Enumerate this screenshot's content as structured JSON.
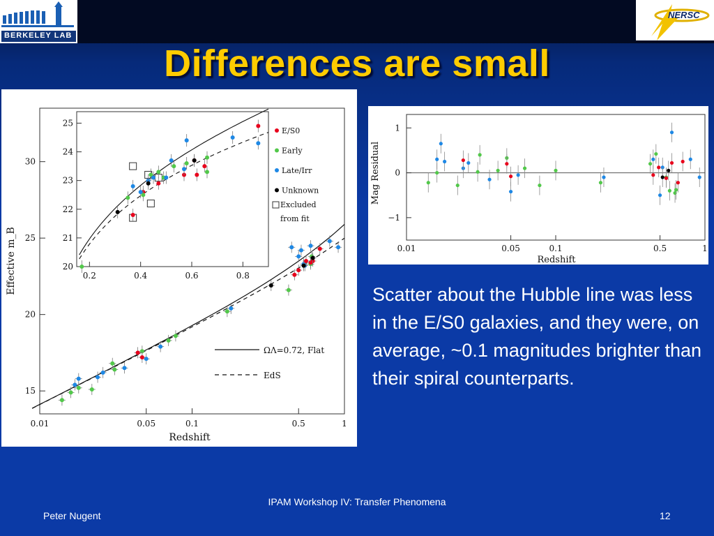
{
  "slide": {
    "title": "Differences are small",
    "body": "Scatter about the Hubble line was less in the E/S0 galaxies, and they were, on average, ~0.1 magnitudes brighter than their spiral counterparts.",
    "footer_left": "Peter Nugent",
    "footer_center": "IPAM Workshop IV: Transfer Phenomena",
    "slide_number": "12"
  },
  "logos": {
    "left": {
      "text": "BERKELEY LAB",
      "icon": "berkeley-lab-logo"
    },
    "right": {
      "text": "NERSC",
      "icon": "nersc-logo"
    }
  },
  "colors": {
    "title": "#ffcc00",
    "background": "#0b3aa6",
    "es0": "#e8001c",
    "early": "#52c84a",
    "late": "#1e88e5",
    "unknown": "#000000"
  },
  "chart_data": [
    {
      "type": "scatter",
      "xlabel": "Redshift",
      "ylabel": "Effective m_B",
      "x_scale": "log",
      "xlim": [
        0.01,
        1.0
      ],
      "ylim": [
        13.5,
        33.5
      ],
      "x_ticks": [
        "0.01",
        "0.05",
        "0.1",
        "0.5",
        "1"
      ],
      "y_ticks": [
        "15",
        "20",
        "25",
        "30"
      ],
      "lines": [
        {
          "name": "ΩΛ=0.72, Flat",
          "style": "solid"
        },
        {
          "name": "EdS",
          "style": "dashed"
        }
      ],
      "series": [
        {
          "name": "Early",
          "color": "#52c84a",
          "points": [
            [
              0.014,
              14.4
            ],
            [
              0.016,
              14.9
            ],
            [
              0.018,
              15.2
            ],
            [
              0.022,
              15.1
            ],
            [
              0.03,
              16.8
            ],
            [
              0.031,
              16.4
            ],
            [
              0.047,
              17.6
            ],
            [
              0.07,
              18.3
            ],
            [
              0.078,
              18.6
            ],
            [
              0.17,
              20.2
            ],
            [
              0.43,
              21.6
            ],
            [
              0.6,
              23.3
            ],
            [
              0.61,
              23.8
            ]
          ]
        },
        {
          "name": "Late/Irr",
          "color": "#1e88e5",
          "points": [
            [
              0.017,
              15.4
            ],
            [
              0.018,
              15.8
            ],
            [
              0.024,
              15.9
            ],
            [
              0.026,
              16.2
            ],
            [
              0.036,
              16.5
            ],
            [
              0.05,
              17.1
            ],
            [
              0.062,
              17.9
            ],
            [
              0.18,
              20.4
            ],
            [
              0.45,
              24.4
            ],
            [
              0.5,
              23.8
            ],
            [
              0.52,
              24.2
            ],
            [
              0.54,
              23.3
            ],
            [
              0.55,
              23.2
            ],
            [
              0.6,
              24.5
            ],
            [
              0.8,
              24.8
            ],
            [
              0.91,
              24.4
            ]
          ]
        },
        {
          "name": "E/S0",
          "color": "#e8001c",
          "points": [
            [
              0.044,
              17.5
            ],
            [
              0.047,
              17.2
            ],
            [
              0.47,
              22.6
            ],
            [
              0.5,
              22.9
            ],
            [
              0.56,
              23.5
            ],
            [
              0.6,
              23.4
            ],
            [
              0.62,
              23.5
            ],
            [
              0.69,
              24.3
            ]
          ]
        },
        {
          "name": "Unknown",
          "color": "#000000",
          "points": [
            [
              0.33,
              21.9
            ],
            [
              0.54,
              23.2
            ],
            [
              0.62,
              23.7
            ]
          ]
        }
      ]
    },
    {
      "type": "scatter",
      "title_inset": "inset",
      "xlim": [
        0.15,
        0.9
      ],
      "ylim": [
        20,
        25.4
      ],
      "x_ticks": [
        "0.2",
        "0.4",
        "0.6",
        "0.8"
      ],
      "y_ticks": [
        "20",
        "21",
        "22",
        "23",
        "24",
        "25"
      ],
      "legend": [
        "E/S0",
        "Early",
        "Late/Irr",
        "Unknown",
        "Excluded from fit"
      ],
      "legend_position": "top-right",
      "series": [
        {
          "name": "E/S0",
          "color": "#e8001c",
          "points": [
            [
              0.37,
              21.8
            ],
            [
              0.41,
              22.6
            ],
            [
              0.47,
              22.9
            ],
            [
              0.57,
              23.2
            ],
            [
              0.61,
              23.7
            ],
            [
              0.62,
              23.2
            ],
            [
              0.65,
              23.5
            ],
            [
              0.86,
              24.9
            ]
          ]
        },
        {
          "name": "Early",
          "color": "#52c84a",
          "points": [
            [
              0.17,
              20.0
            ],
            [
              0.35,
              22.4
            ],
            [
              0.41,
              22.5
            ],
            [
              0.44,
              23.2
            ],
            [
              0.47,
              23.3
            ],
            [
              0.49,
              23.1
            ],
            [
              0.53,
              23.5
            ],
            [
              0.58,
              23.6
            ],
            [
              0.66,
              23.3
            ],
            [
              0.66,
              23.8
            ]
          ]
        },
        {
          "name": "Late/Irr",
          "color": "#1e88e5",
          "points": [
            [
              0.37,
              22.8
            ],
            [
              0.4,
              22.6
            ],
            [
              0.43,
              23.0
            ],
            [
              0.45,
              23.1
            ],
            [
              0.5,
              23.1
            ],
            [
              0.52,
              23.7
            ],
            [
              0.57,
              23.4
            ],
            [
              0.58,
              24.4
            ],
            [
              0.76,
              24.5
            ],
            [
              0.86,
              24.3
            ]
          ]
        },
        {
          "name": "Unknown",
          "color": "#000000",
          "points": [
            [
              0.31,
              21.9
            ],
            [
              0.43,
              22.9
            ],
            [
              0.61,
              23.7
            ]
          ]
        }
      ],
      "excluded_open_squares": [
        [
          0.37,
          23.5
        ],
        [
          0.37,
          21.7
        ],
        [
          0.43,
          23.2
        ],
        [
          0.44,
          22.2
        ],
        [
          0.47,
          23.1
        ]
      ]
    },
    {
      "type": "scatter",
      "xlabel": "Redshift",
      "ylabel": "Mag Residual",
      "x_scale": "log",
      "xlim": [
        0.01,
        1.0
      ],
      "ylim": [
        -1.5,
        1.3
      ],
      "x_ticks": [
        "0.01",
        "0.05",
        "0.1",
        "0.5",
        "1"
      ],
      "y_ticks": [
        "1",
        "0",
        "-1"
      ],
      "series": [
        {
          "name": "Early",
          "color": "#52c84a",
          "points": [
            [
              0.014,
              -0.22
            ],
            [
              0.016,
              0.0
            ],
            [
              0.022,
              -0.28
            ],
            [
              0.03,
              0.02
            ],
            [
              0.031,
              0.4
            ],
            [
              0.041,
              0.05
            ],
            [
              0.047,
              0.33
            ],
            [
              0.062,
              0.1
            ],
            [
              0.078,
              -0.28
            ],
            [
              0.1,
              0.05
            ],
            [
              0.2,
              -0.22
            ],
            [
              0.43,
              0.2
            ],
            [
              0.47,
              0.42
            ],
            [
              0.55,
              -0.1
            ],
            [
              0.58,
              -0.4
            ],
            [
              0.63,
              -0.45
            ],
            [
              0.64,
              -0.38
            ]
          ]
        },
        {
          "name": "Late/Irr",
          "color": "#1e88e5",
          "points": [
            [
              0.016,
              0.3
            ],
            [
              0.017,
              0.65
            ],
            [
              0.018,
              0.25
            ],
            [
              0.024,
              0.1
            ],
            [
              0.026,
              0.22
            ],
            [
              0.036,
              -0.15
            ],
            [
              0.05,
              -0.42
            ],
            [
              0.056,
              -0.05
            ],
            [
              0.21,
              -0.1
            ],
            [
              0.45,
              0.3
            ],
            [
              0.5,
              -0.5
            ],
            [
              0.52,
              0.12
            ],
            [
              0.6,
              0.9
            ],
            [
              0.8,
              0.3
            ],
            [
              0.92,
              -0.1
            ]
          ]
        },
        {
          "name": "E/S0",
          "color": "#e8001c",
          "points": [
            [
              0.024,
              0.28
            ],
            [
              0.047,
              0.2
            ],
            [
              0.05,
              -0.08
            ],
            [
              0.45,
              -0.05
            ],
            [
              0.49,
              0.12
            ],
            [
              0.55,
              -0.12
            ],
            [
              0.6,
              0.22
            ],
            [
              0.66,
              -0.22
            ],
            [
              0.71,
              0.25
            ]
          ]
        },
        {
          "name": "Unknown",
          "color": "#000000",
          "points": [
            [
              0.52,
              -0.1
            ],
            [
              0.57,
              0.05
            ]
          ]
        }
      ]
    }
  ]
}
